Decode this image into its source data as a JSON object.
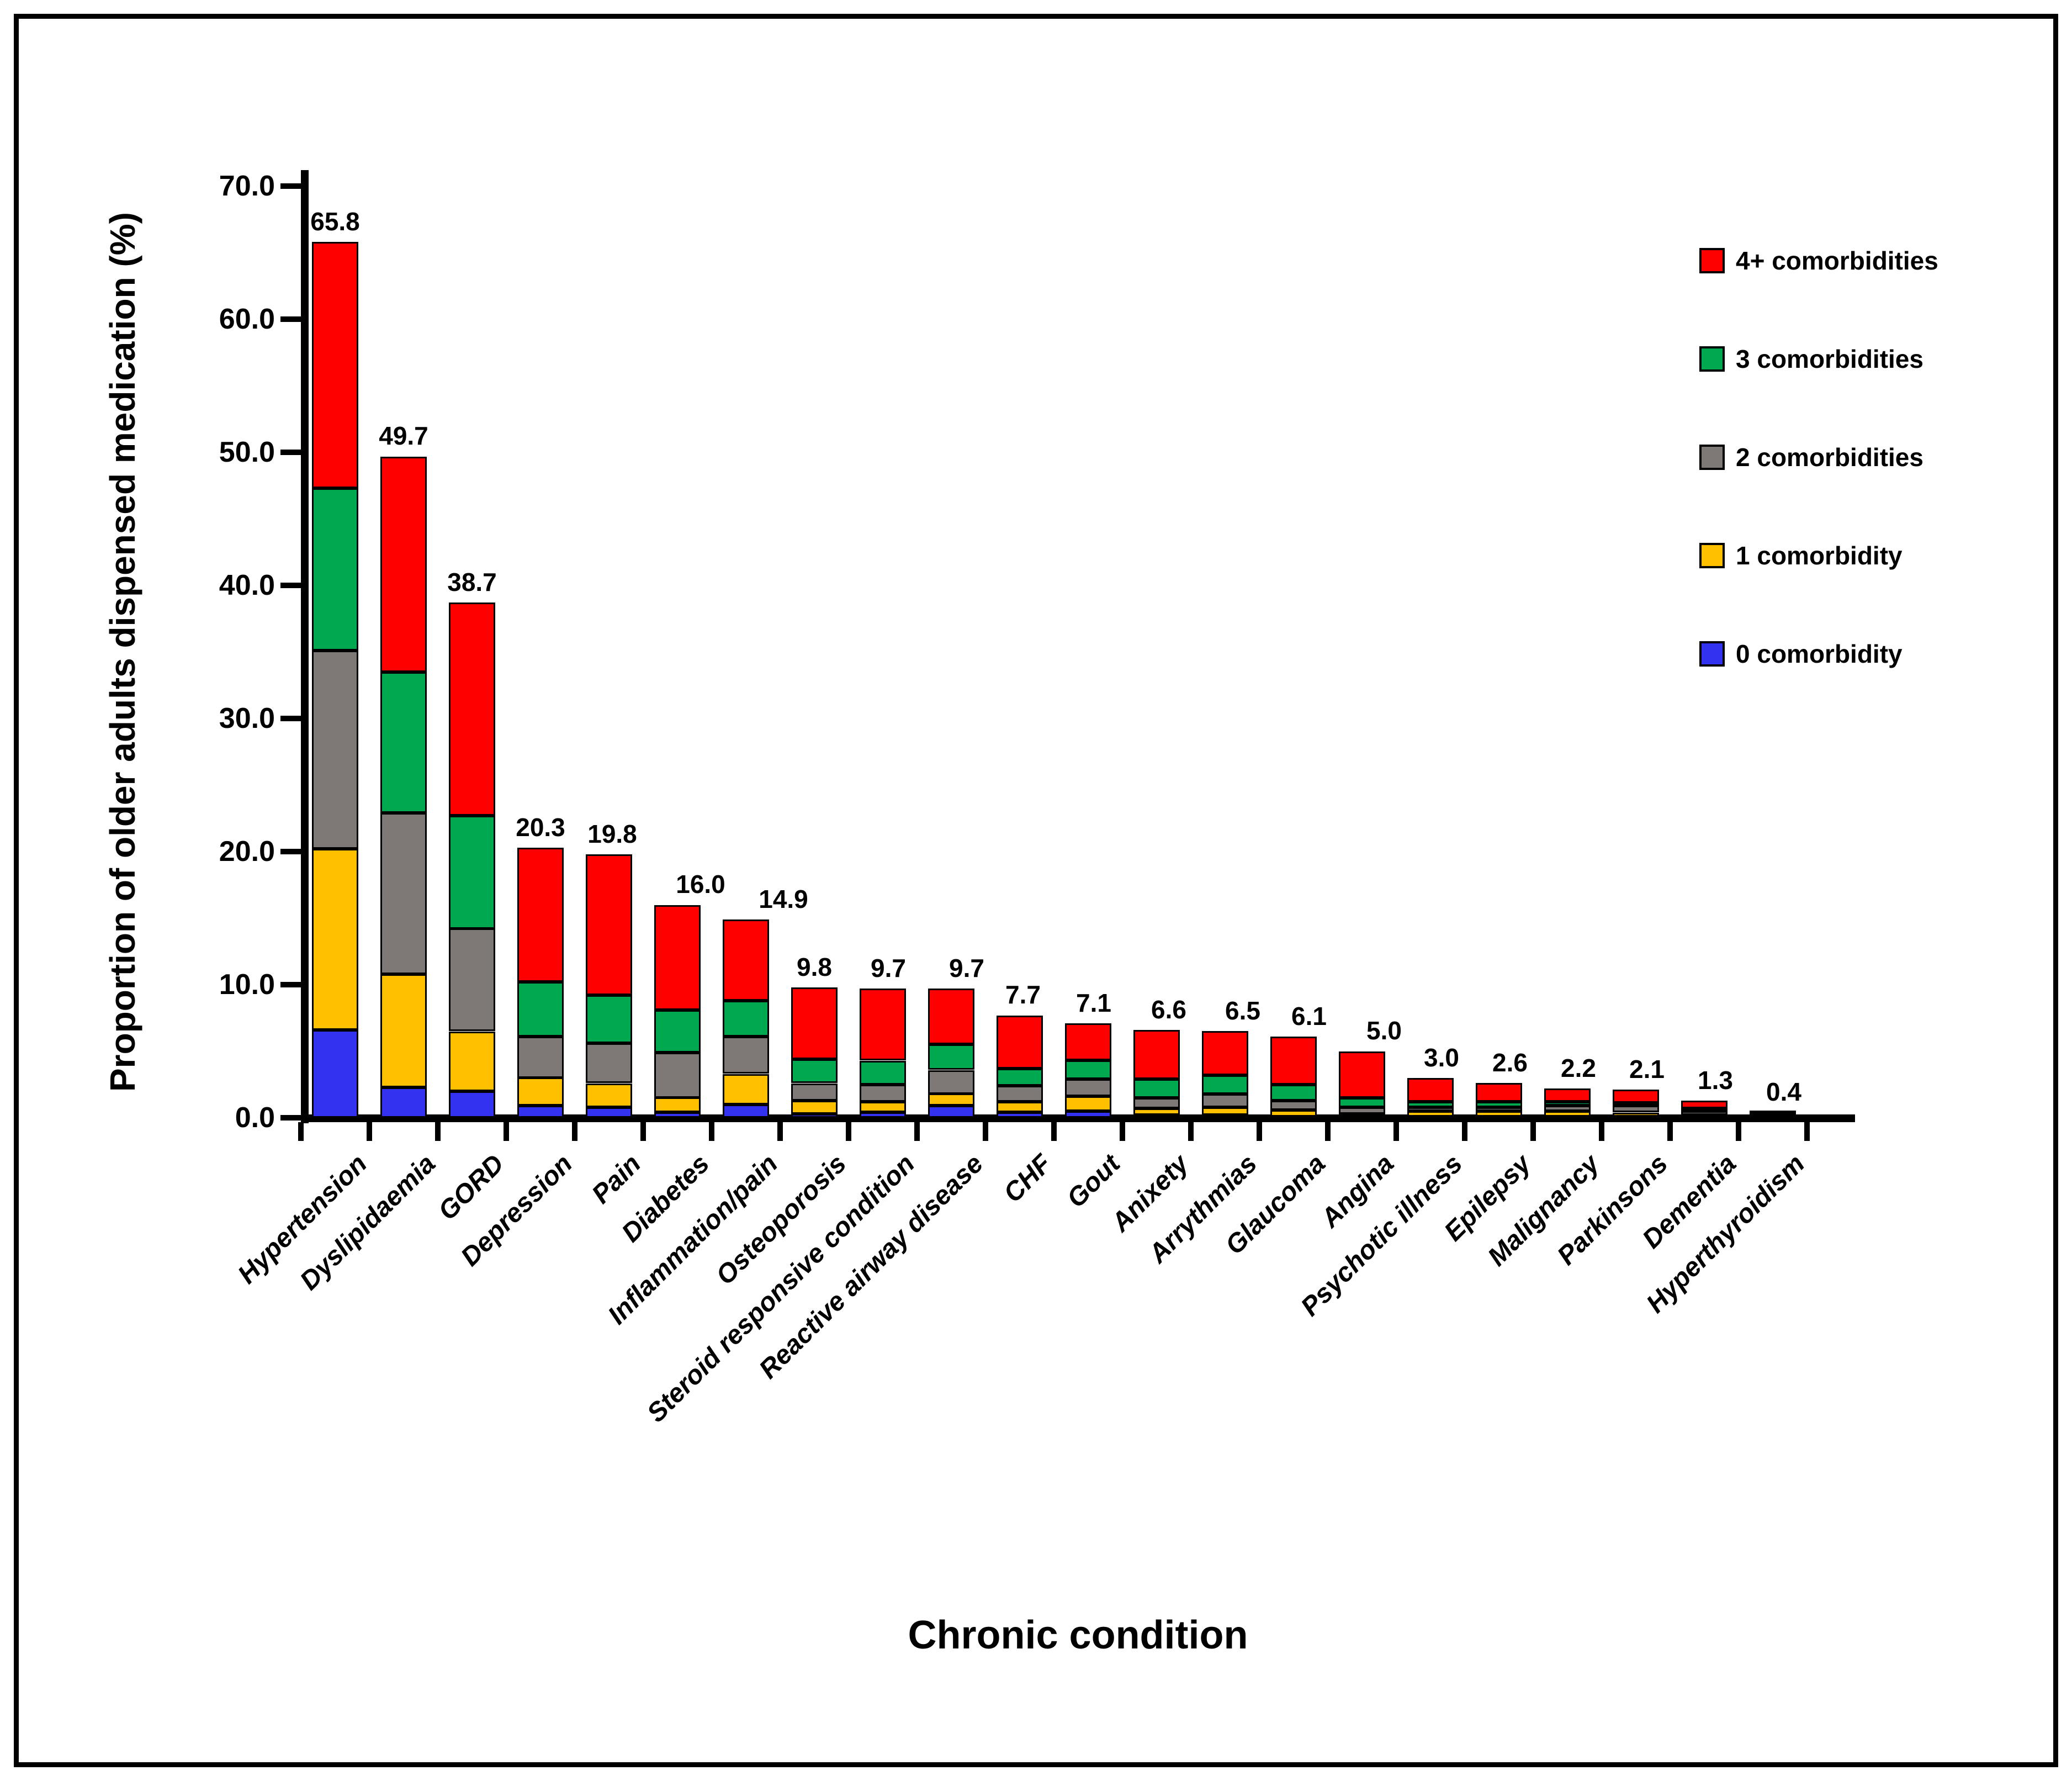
{
  "figure": {
    "y_axis_title": "Proportion of older adults dispensed medication (%)",
    "x_axis_title": "Chronic condition"
  },
  "legend": {
    "position": "right",
    "items": [
      {
        "label": "4+ comorbidities",
        "color": "#FE0000"
      },
      {
        "label": "3 comorbidities",
        "color": "#00A950"
      },
      {
        "label": "2 comorbidities",
        "color": "#7E7977"
      },
      {
        "label": "1 comorbidity",
        "color": "#FFC000"
      },
      {
        "label": "0 comorbidity",
        "color": "#3232F0"
      }
    ]
  },
  "chart_data": {
    "type": "bar",
    "stacked": true,
    "title": "",
    "xlabel": "Chronic condition",
    "ylabel": "Proportion of older adults dispensed medication (%)",
    "ylim": [
      0,
      70
    ],
    "grid": false,
    "legend_position": "upper right",
    "y_tick_labels": [
      "0.0",
      "10.0",
      "20.0",
      "30.0",
      "40.0",
      "50.0",
      "60.0",
      "70.0"
    ],
    "categories": [
      "Hypertension",
      "Dyslipidaemia",
      "GORD",
      "Depression",
      "Pain",
      "Diabetes",
      "Inflammation/pain",
      "Osteoporosis",
      "Steroid responsive condition",
      "Reactive airway disease",
      "CHF",
      "Gout",
      "Anixety",
      "Arrythmias",
      "Glaucoma",
      "Angina",
      "Psychotic illness",
      "Epilepsy",
      "Malignancy",
      "Parkinsons",
      "Dementia",
      "Hyperthyroidism"
    ],
    "totals": [
      65.8,
      49.7,
      38.7,
      20.3,
      19.8,
      16.0,
      14.9,
      9.8,
      9.7,
      9.7,
      7.7,
      7.1,
      6.6,
      6.5,
      6.1,
      5.0,
      3.0,
      2.6,
      2.2,
      2.1,
      1.3,
      0.4
    ],
    "total_labels": [
      "65.8",
      "49.7",
      "38.7",
      "20.3",
      "19.8",
      "16.0",
      "14.9",
      "9.8",
      "9.7",
      "9.7",
      "7.7",
      "7.1",
      "6.6",
      "6.5",
      "6.1",
      "5.0",
      "3.0",
      "2.6",
      "2.2",
      "2.1",
      "1.3",
      "0.4"
    ],
    "series": [
      {
        "name": "0 comorbidity",
        "color": "#3232F0",
        "values": [
          6.6,
          2.3,
          2.0,
          0.9,
          0.8,
          0.4,
          1.0,
          0.3,
          0.4,
          0.9,
          0.4,
          0.5,
          0.2,
          0.2,
          0.1,
          0.1,
          0.1,
          0.1,
          0.1,
          0.1,
          0.1,
          0.0
        ]
      },
      {
        "name": "1 comorbidity",
        "color": "#FFC000",
        "values": [
          13.6,
          8.5,
          4.5,
          2.1,
          1.8,
          1.1,
          2.3,
          1.0,
          0.8,
          0.9,
          0.8,
          1.1,
          0.5,
          0.6,
          0.5,
          0.2,
          0.4,
          0.4,
          0.4,
          0.3,
          0.1,
          0.1
        ]
      },
      {
        "name": "2 comorbidities",
        "color": "#7E7977",
        "values": [
          14.9,
          12.1,
          7.7,
          3.1,
          3.0,
          3.4,
          2.8,
          1.3,
          1.3,
          1.8,
          1.2,
          1.3,
          0.8,
          1.0,
          0.7,
          0.5,
          0.3,
          0.3,
          0.4,
          0.5,
          0.3,
          0.1
        ]
      },
      {
        "name": "3 comorbidities",
        "color": "#00A950",
        "values": [
          12.2,
          10.6,
          8.5,
          4.1,
          3.6,
          3.2,
          2.7,
          1.8,
          1.8,
          1.9,
          1.3,
          1.4,
          1.4,
          1.4,
          1.2,
          0.7,
          0.4,
          0.4,
          0.3,
          0.2,
          0.2,
          0.1
        ]
      },
      {
        "name": "4+ comorbidities",
        "color": "#FE0000",
        "values": [
          18.5,
          16.2,
          16.0,
          10.1,
          10.6,
          7.9,
          6.1,
          5.4,
          5.4,
          4.2,
          4.0,
          2.8,
          3.7,
          3.3,
          3.6,
          3.5,
          1.8,
          1.4,
          1.0,
          1.0,
          0.6,
          0.1
        ]
      }
    ]
  }
}
